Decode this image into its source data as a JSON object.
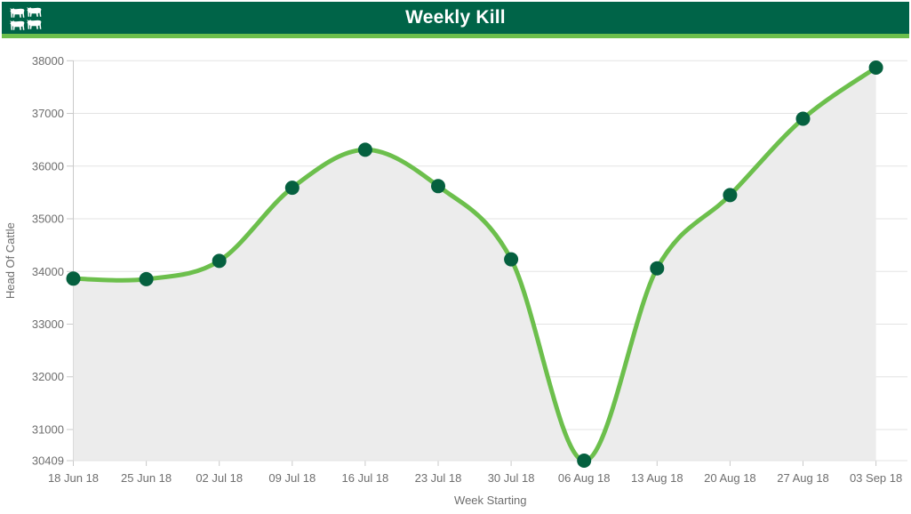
{
  "header": {
    "title": "Weekly Kill",
    "icon": "cattle-icon",
    "colors": {
      "bar": "#006448",
      "accent": "#6cbf4c",
      "title_text": "#ffffff"
    }
  },
  "chart_data": {
    "type": "area",
    "title": "Weekly Kill",
    "xlabel": "Week Starting",
    "ylabel": "Head Of Cattle",
    "categories": [
      "18 Jun 18",
      "25 Jun 18",
      "02 Jul 18",
      "09 Jul 18",
      "16 Jul 18",
      "23 Jul 18",
      "30 Jul 18",
      "06 Aug 18",
      "13 Aug 18",
      "20 Aug 18",
      "27 Aug 18",
      "03 Sep 18"
    ],
    "series": [
      {
        "name": "Weekly Kill",
        "values": [
          33865,
          33855,
          34200,
          35590,
          36310,
          35620,
          34230,
          30409,
          34060,
          35450,
          36900,
          37870
        ]
      }
    ],
    "y_ticks": [
      38000,
      37000,
      36000,
      35000,
      34000,
      33000,
      32000,
      31000,
      30409
    ],
    "ylim": [
      30409,
      38000
    ],
    "grid": true,
    "legend": false,
    "smooth": true,
    "colors": {
      "line": "#6cbf4c",
      "marker": "#05603f",
      "fill": "#ececec",
      "grid": "#e3e3e3",
      "axis": "#c9c9c9",
      "labels": "#6e6e6e"
    }
  }
}
